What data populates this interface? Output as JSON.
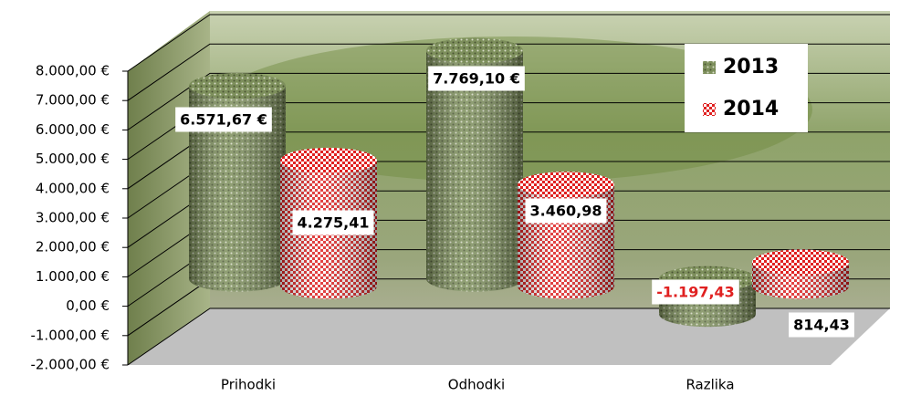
{
  "chart_data": {
    "type": "bar3d",
    "categories": [
      "Prihodki",
      "Odhodki",
      "Razlika"
    ],
    "series": [
      {
        "name": "2013",
        "color": "#7d8f5c",
        "values": [
          6571.67,
          7769.1,
          -1197.43
        ],
        "value_labels": [
          "6.571,67 €",
          "7.769,10 €",
          "-1.197,43"
        ]
      },
      {
        "name": "2014",
        "color": "#e02020",
        "values": [
          4275.41,
          3460.98,
          814.43
        ],
        "value_labels": [
          "4.275,41",
          "3.460,98",
          "814,43"
        ]
      }
    ],
    "ylim": [
      -2000,
      8000
    ],
    "yticks": [
      {
        "value": -2000,
        "label": "-2.000,00 €"
      },
      {
        "value": -1000,
        "label": "-1.000,00 €"
      },
      {
        "value": 0,
        "label": "0,00 €"
      },
      {
        "value": 1000,
        "label": "1.000,00 €"
      },
      {
        "value": 2000,
        "label": "2.000,00 €"
      },
      {
        "value": 3000,
        "label": "3.000,00 €"
      },
      {
        "value": 4000,
        "label": "4.000,00 €"
      },
      {
        "value": 5000,
        "label": "5.000,00 €"
      },
      {
        "value": 6000,
        "label": "6.000,00 €"
      },
      {
        "value": 7000,
        "label": "7.000,00 €"
      },
      {
        "value": 8000,
        "label": "8.000,00 €"
      }
    ],
    "grid": true,
    "legend": "top-right"
  }
}
